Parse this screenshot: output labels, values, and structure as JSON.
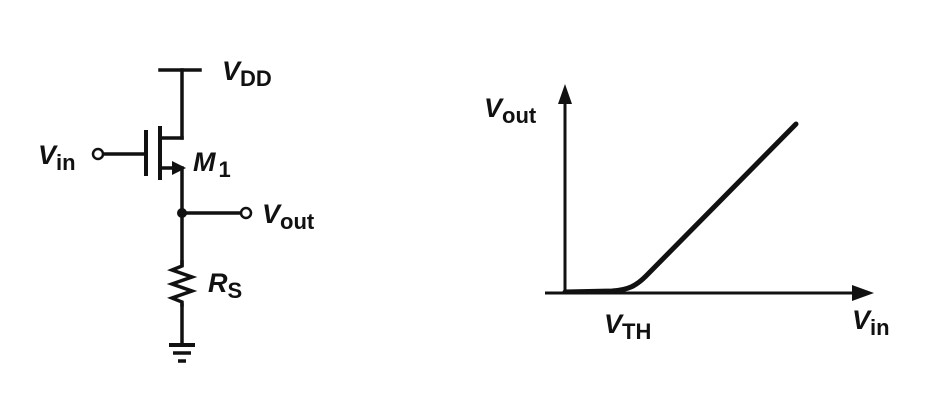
{
  "circuit": {
    "supply": {
      "symbol": "V",
      "sub": "DD"
    },
    "input": {
      "symbol": "V",
      "sub": "in"
    },
    "transistor": {
      "symbol": "M",
      "sub": "1"
    },
    "output": {
      "symbol": "V",
      "sub": "out"
    },
    "resistor": {
      "symbol": "R",
      "sub": "S"
    }
  },
  "graph": {
    "y_axis": {
      "symbol": "V",
      "sub": "out"
    },
    "x_axis": {
      "symbol": "V",
      "sub": "in"
    },
    "threshold": {
      "symbol": "V",
      "sub": "TH"
    }
  }
}
